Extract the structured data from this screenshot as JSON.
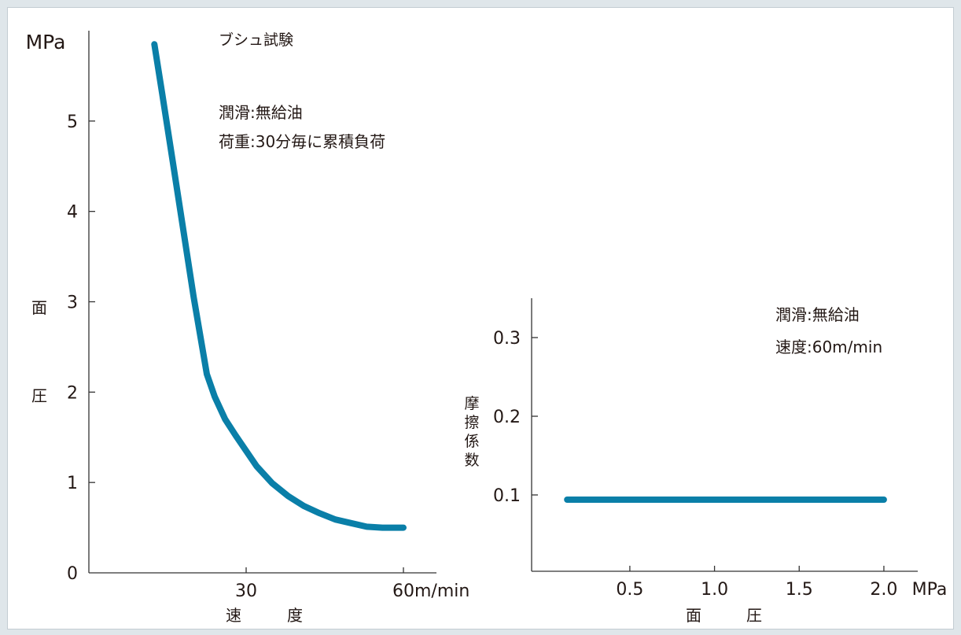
{
  "colors": {
    "curve": "#0a7fa8",
    "axis": "#333333",
    "text": "#231815",
    "frame_bg": "#dfe6ea"
  },
  "chart_data": [
    {
      "type": "line",
      "title": "ブシュ試験",
      "annotations": [
        "潤滑:無給油",
        "荷重:30分毎に累積負荷"
      ],
      "y_unit": "MPa",
      "ylabel_chars": [
        "面",
        "圧"
      ],
      "xlabel_chars": [
        "速",
        "度"
      ],
      "xticks": [
        {
          "value": 30,
          "label": "30"
        },
        {
          "value": 60,
          "label": "60m/min"
        }
      ],
      "yticks": [
        {
          "value": 0,
          "label": "0"
        },
        {
          "value": 1,
          "label": "1"
        },
        {
          "value": 2,
          "label": "2"
        },
        {
          "value": 3,
          "label": "3"
        },
        {
          "value": 4,
          "label": "4"
        },
        {
          "value": 5,
          "label": "5"
        }
      ],
      "xlim": [
        0,
        66
      ],
      "ylim": [
        0,
        6
      ],
      "series": [
        {
          "x": [
            12.5,
            14,
            16,
            18,
            20,
            22.5,
            24,
            26,
            28,
            30,
            32,
            35,
            38,
            41,
            44,
            47,
            50,
            53,
            56,
            60
          ],
          "y": [
            5.85,
            5.3,
            4.55,
            3.8,
            3.05,
            2.2,
            1.95,
            1.7,
            1.52,
            1.35,
            1.18,
            0.99,
            0.85,
            0.74,
            0.66,
            0.59,
            0.55,
            0.51,
            0.5,
            0.5
          ]
        }
      ]
    },
    {
      "type": "line",
      "annotations": [
        "潤滑:無給油",
        "速度:60m/min"
      ],
      "ylabel_chars": [
        "摩",
        "擦",
        "係",
        "数"
      ],
      "xlabel_chars": [
        "面",
        "圧"
      ],
      "xticks": [
        {
          "value": 0.5,
          "label": "0.5"
        },
        {
          "value": 1.0,
          "label": "1.0"
        },
        {
          "value": 1.5,
          "label": "1.5"
        },
        {
          "value": 2.0,
          "label": "2.0"
        }
      ],
      "x_unit": "MPa",
      "yticks": [
        {
          "value": 0.1,
          "label": "0.1"
        },
        {
          "value": 0.2,
          "label": "0.2"
        },
        {
          "value": 0.3,
          "label": "0.3"
        }
      ],
      "xlim": [
        -0.08,
        2.2
      ],
      "ylim": [
        0.003,
        0.35
      ],
      "series": [
        {
          "x": [
            0.13,
            2.0
          ],
          "y": [
            0.094,
            0.094
          ]
        }
      ]
    }
  ]
}
